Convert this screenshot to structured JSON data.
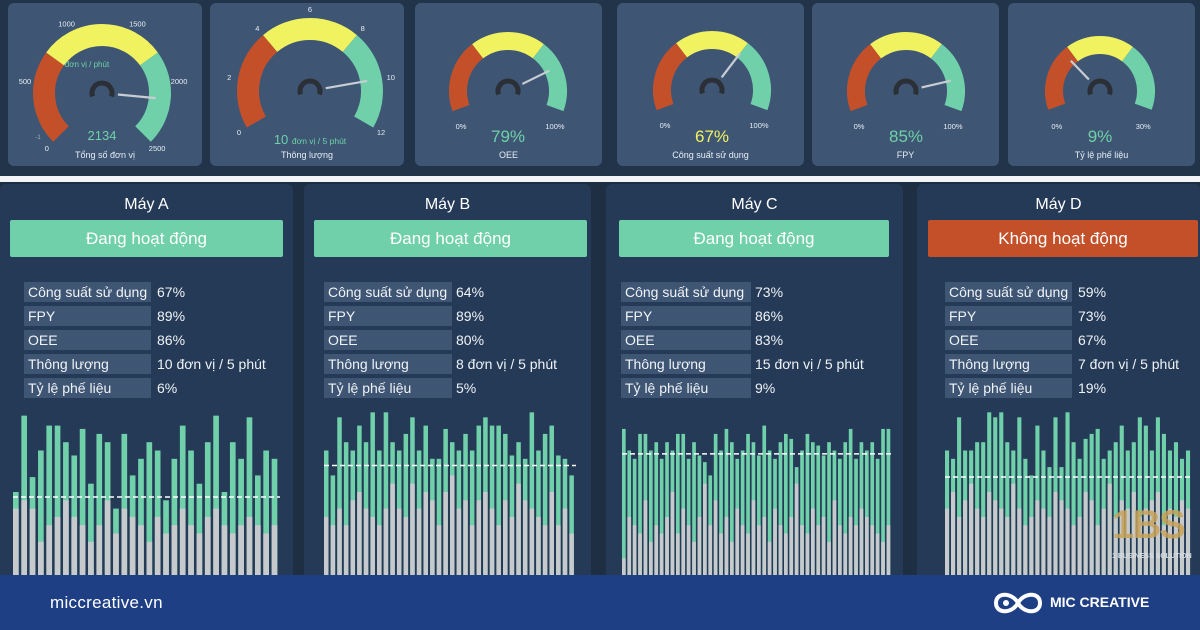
{
  "gauges": [
    {
      "title": "Tổng số đơn vị",
      "value_text": "2134",
      "min": 0,
      "max": 2500,
      "value": 2134,
      "value_color": "#6fd0a9",
      "ticks": [
        {
          "v": 0,
          "t": "0"
        },
        {
          "v": 500,
          "t": "500"
        },
        {
          "v": 1000,
          "t": "1000"
        },
        {
          "v": 1500,
          "t": "1500"
        },
        {
          "v": 2000,
          "t": "2000"
        },
        {
          "v": 2500,
          "t": "2500"
        }
      ],
      "unit_text": "đơn vị / phút",
      "bounds": [
        750,
        1750
      ],
      "extra_label": "-1"
    },
    {
      "title": "Thông lượng",
      "value_text": "10",
      "unit_text": "đơn vị / 5 phút",
      "min": 0,
      "max": 12,
      "value": 10,
      "value_color": "#6fd0a9",
      "ticks": [
        {
          "v": 0,
          "t": "0"
        },
        {
          "v": 2,
          "t": "2"
        },
        {
          "v": 4,
          "t": "4"
        },
        {
          "v": 6,
          "t": "6"
        },
        {
          "v": 8,
          "t": "8"
        },
        {
          "v": 10,
          "t": "10"
        },
        {
          "v": 12,
          "t": "12"
        }
      ],
      "bounds": [
        4,
        8
      ]
    },
    {
      "title": "OEE",
      "value_text": "79%",
      "min": 0,
      "max": 100,
      "value": 79,
      "value_color": "#6fd0a9",
      "ticks": [
        {
          "v": 0,
          "t": "0%"
        },
        {
          "v": 100,
          "t": "100%"
        }
      ],
      "bounds": [
        33,
        67
      ]
    },
    {
      "title": "Công suất sử dụng",
      "value_text": "67%",
      "min": 0,
      "max": 100,
      "value": 67,
      "value_color": "#f1f260",
      "ticks": [
        {
          "v": 0,
          "t": "0%"
        },
        {
          "v": 100,
          "t": "100%"
        }
      ],
      "bounds": [
        33,
        67
      ]
    },
    {
      "title": "FPY",
      "value_text": "85%",
      "min": 0,
      "max": 100,
      "value": 85,
      "value_color": "#6fd0a9",
      "ticks": [
        {
          "v": 0,
          "t": "0%"
        },
        {
          "v": 100,
          "t": "100%"
        }
      ],
      "bounds": [
        33,
        67
      ]
    },
    {
      "title": "Tỷ lệ phế liệu",
      "value_text": "9%",
      "min": 0,
      "max": 30,
      "value": 9,
      "value_color": "#6fd0a9",
      "ticks": [
        {
          "v": 0,
          "t": "0%"
        },
        {
          "v": 30,
          "t": "30%"
        }
      ],
      "bounds": [
        10,
        20
      ]
    }
  ],
  "machines": [
    {
      "name": "Máy A",
      "status": "Đang hoạt động",
      "status_color": "#6fd0a9",
      "stats": [
        {
          "label": "Công suất sử dụng",
          "value": "67%"
        },
        {
          "label": "FPY",
          "value": "89%"
        },
        {
          "label": "OEE",
          "value": "86%"
        },
        {
          "label": "Thông lượng",
          "value": "10 đơn vị / 5 phút"
        },
        {
          "label": "Tỷ lệ phế liệu",
          "value": "6%"
        }
      ],
      "avg_level": 0.47,
      "bars_total": [
        0.5,
        0.96,
        0.59,
        0.75,
        0.9,
        0.9,
        0.8,
        0.72,
        0.88,
        0.55,
        0.85,
        0.8,
        0.4,
        0.85,
        0.6,
        0.7,
        0.8,
        0.75,
        0.45,
        0.7,
        0.9,
        0.75,
        0.55,
        0.8,
        0.96,
        0.5,
        0.8,
        0.7,
        0.95,
        0.6,
        0.75,
        0.7
      ],
      "bars_good": [
        0.4,
        0.45,
        0.4,
        0.2,
        0.3,
        0.35,
        0.45,
        0.35,
        0.3,
        0.2,
        0.3,
        0.45,
        0.25,
        0.4,
        0.35,
        0.3,
        0.2,
        0.35,
        0.25,
        0.3,
        0.4,
        0.3,
        0.25,
        0.35,
        0.4,
        0.3,
        0.25,
        0.3,
        0.35,
        0.3,
        0.25,
        0.3
      ]
    },
    {
      "name": "Máy B",
      "status": "Đang hoạt động",
      "status_color": "#6fd0a9",
      "stats": [
        {
          "label": "Công suất sử dụng",
          "value": "64%"
        },
        {
          "label": "FPY",
          "value": "89%"
        },
        {
          "label": "OEE",
          "value": "80%"
        },
        {
          "label": "Thông lượng",
          "value": "8 đơn vị / 5 phút"
        },
        {
          "label": "Tỷ lệ phế liệu",
          "value": "5%"
        }
      ],
      "avg_level": 0.66,
      "bars_total": [
        0.75,
        0.6,
        0.95,
        0.8,
        0.75,
        0.9,
        0.8,
        0.98,
        0.75,
        0.98,
        0.8,
        0.75,
        0.85,
        0.95,
        0.75,
        0.9,
        0.7,
        0.7,
        0.88,
        0.8,
        0.75,
        0.85,
        0.75,
        0.9,
        0.95,
        0.9,
        0.9,
        0.85,
        0.72,
        0.8,
        0.7,
        0.98,
        0.75,
        0.85,
        0.9,
        0.72,
        0.7,
        0.6
      ],
      "bars_good": [
        0.35,
        0.3,
        0.4,
        0.3,
        0.45,
        0.5,
        0.4,
        0.35,
        0.3,
        0.4,
        0.55,
        0.4,
        0.35,
        0.55,
        0.4,
        0.5,
        0.45,
        0.3,
        0.5,
        0.6,
        0.4,
        0.45,
        0.3,
        0.45,
        0.5,
        0.4,
        0.3,
        0.45,
        0.35,
        0.55,
        0.45,
        0.4,
        0.35,
        0.3,
        0.5,
        0.3,
        0.4,
        0.25
      ]
    },
    {
      "name": "Máy C",
      "status": "Đang hoạt động",
      "status_color": "#6fd0a9",
      "stats": [
        {
          "label": "Công suất sử dụng",
          "value": "73%"
        },
        {
          "label": "FPY",
          "value": "86%"
        },
        {
          "label": "OEE",
          "value": "83%"
        },
        {
          "label": "Thông lượng",
          "value": "15 đơn vị / 5 phút"
        },
        {
          "label": "Tỷ lệ phế liệu",
          "value": "9%"
        }
      ],
      "avg_level": 0.73,
      "bars_total": [
        0.88,
        0.75,
        0.7,
        0.85,
        0.85,
        0.75,
        0.8,
        0.7,
        0.8,
        0.75,
        0.85,
        0.85,
        0.7,
        0.8,
        0.72,
        0.68,
        0.6,
        0.85,
        0.75,
        0.88,
        0.8,
        0.7,
        0.75,
        0.85,
        0.8,
        0.72,
        0.9,
        0.75,
        0.7,
        0.8,
        0.85,
        0.82,
        0.65,
        0.75,
        0.85,
        0.8,
        0.78,
        0.72,
        0.8,
        0.75,
        0.7,
        0.8,
        0.88,
        0.7,
        0.8,
        0.75,
        0.8,
        0.7,
        0.88,
        0.88
      ],
      "bars_good": [
        0.1,
        0.35,
        0.3,
        0.25,
        0.45,
        0.2,
        0.3,
        0.25,
        0.35,
        0.5,
        0.25,
        0.4,
        0.3,
        0.2,
        0.35,
        0.55,
        0.3,
        0.45,
        0.25,
        0.35,
        0.2,
        0.4,
        0.3,
        0.25,
        0.45,
        0.3,
        0.35,
        0.2,
        0.4,
        0.3,
        0.25,
        0.35,
        0.55,
        0.3,
        0.25,
        0.4,
        0.3,
        0.35,
        0.2,
        0.45,
        0.3,
        0.25,
        0.35,
        0.3,
        0.4,
        0.35,
        0.3,
        0.25,
        0.2,
        0.3
      ]
    },
    {
      "name": "Máy D",
      "status": "Không hoạt động",
      "status_color": "#c4502a",
      "stats": [
        {
          "label": "Công suất sử dụng",
          "value": "59%"
        },
        {
          "label": "FPY",
          "value": "73%"
        },
        {
          "label": "OEE",
          "value": "67%"
        },
        {
          "label": "Thông lượng",
          "value": "7 đơn vị / 5 phút"
        },
        {
          "label": "Tỷ lệ phế liệu",
          "value": "19%"
        }
      ],
      "avg_level": 0.59,
      "bars_total": [
        0.75,
        0.7,
        0.95,
        0.75,
        0.75,
        0.8,
        0.8,
        0.98,
        0.95,
        0.98,
        0.8,
        0.75,
        0.95,
        0.7,
        0.6,
        0.9,
        0.75,
        0.65,
        0.95,
        0.65,
        0.98,
        0.8,
        0.7,
        0.82,
        0.85,
        0.88,
        0.7,
        0.75,
        0.8,
        0.9,
        0.75,
        0.8,
        0.95,
        0.9,
        0.75,
        0.95,
        0.85,
        0.75,
        0.8,
        0.7,
        0.75
      ],
      "bars_good": [
        0.4,
        0.5,
        0.35,
        0.45,
        0.55,
        0.4,
        0.35,
        0.5,
        0.45,
        0.4,
        0.35,
        0.55,
        0.4,
        0.3,
        0.35,
        0.45,
        0.4,
        0.35,
        0.5,
        0.45,
        0.4,
        0.3,
        0.35,
        0.5,
        0.45,
        0.3,
        0.4,
        0.55,
        0.35,
        0.45,
        0.4,
        0.5,
        0.35,
        0.4,
        0.45,
        0.5,
        0.3,
        0.4,
        0.35,
        0.45,
        0.4
      ]
    }
  ],
  "footer": {
    "site": "miccreative.vn",
    "brand": "MIC CREATIVE"
  },
  "watermark": {
    "big": "1BS",
    "small": "1 BUSINESS SOLUTION"
  },
  "colors": {
    "red": "#c4502a",
    "yellow": "#f1f260",
    "green": "#6fd0a9",
    "needle": "#c8cdd3",
    "bar_gray": "#c7cacd"
  }
}
